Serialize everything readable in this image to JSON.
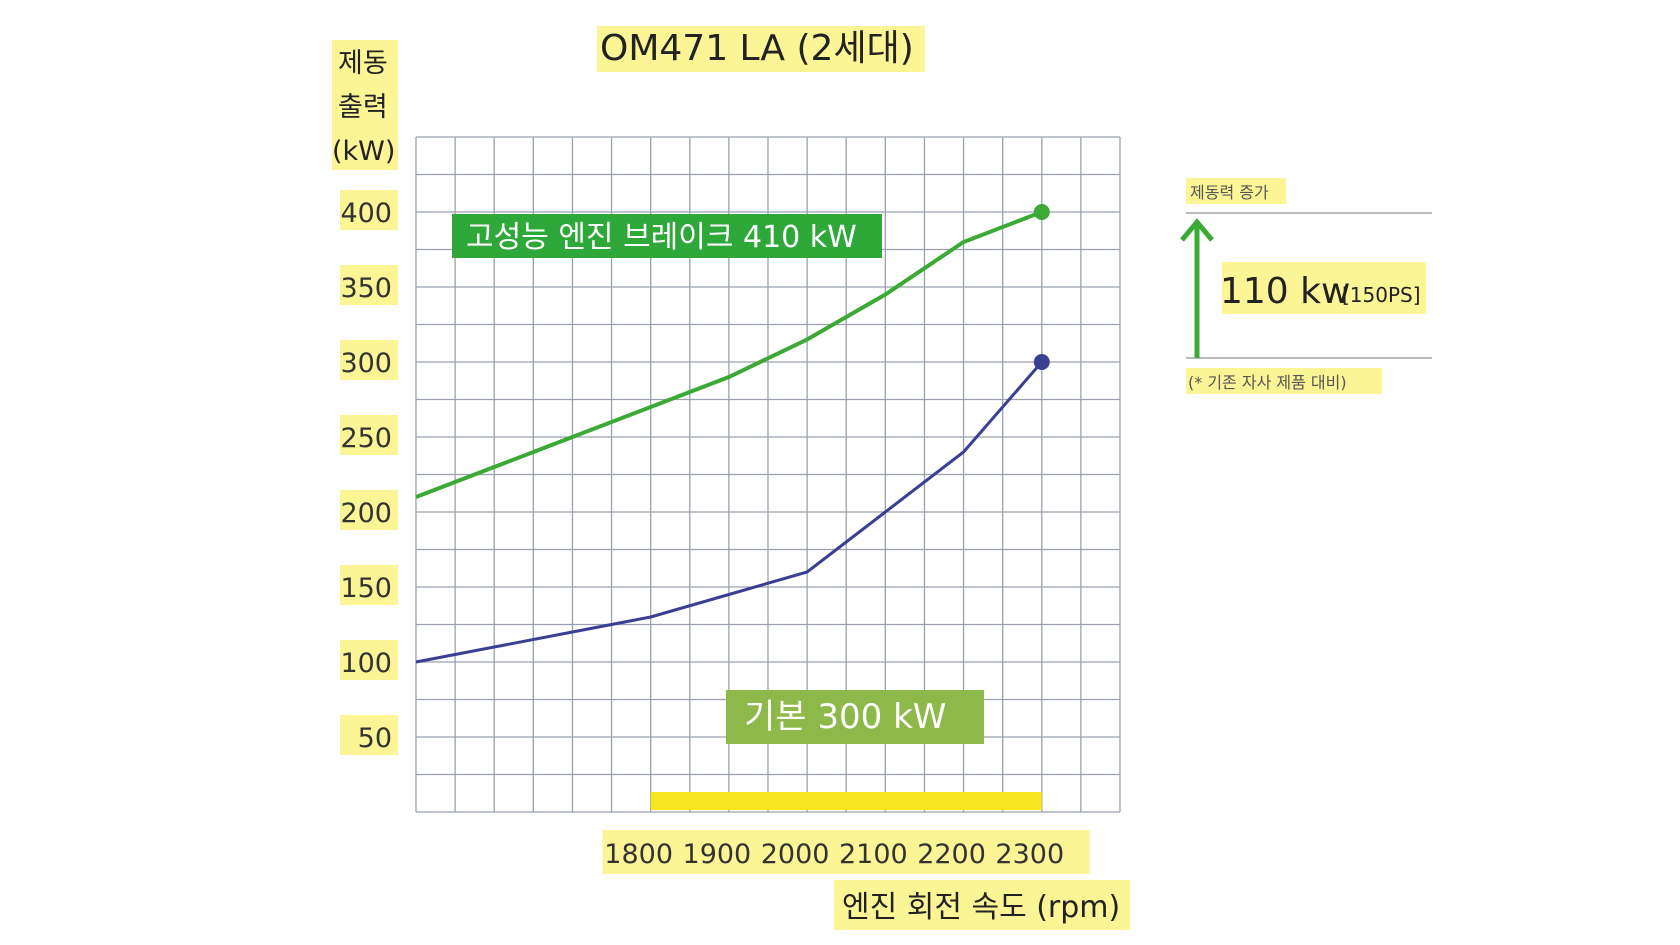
{
  "chart_data": {
    "type": "line",
    "title": "OM471 LA (2세대)",
    "ylabel_lines": [
      "제동",
      "출력",
      "(kW)"
    ],
    "xlabel": "엔진 회전 속도 (rpm)",
    "x_ticks": [
      "1800",
      "1900",
      "2000",
      "2100",
      "2200",
      "2300"
    ],
    "y_ticks": [
      "50",
      "100",
      "150",
      "200",
      "250",
      "300",
      "350",
      "400"
    ],
    "xlim": [
      1500,
      2400
    ],
    "ylim": [
      0,
      450
    ],
    "grid": true,
    "series": [
      {
        "label": "고성능 엔진 브레이크 410 kW",
        "color": "#3aaa35",
        "x": [
          1500,
          1600,
          1700,
          1800,
          1900,
          2000,
          2100,
          2200,
          2300
        ],
        "y": [
          210,
          230,
          250,
          270,
          290,
          315,
          345,
          380,
          400
        ]
      },
      {
        "label": "기본 300 kW",
        "color": "#3b3f94",
        "x": [
          1500,
          1600,
          1700,
          1800,
          1900,
          2000,
          2100,
          2200,
          2300
        ],
        "y": [
          100,
          110,
          120,
          130,
          145,
          160,
          200,
          240,
          300
        ]
      }
    ],
    "highlight_range": [
      1800,
      2300
    ],
    "highlight_color": "#f7e51f",
    "box_colors": [
      "#2fa83a",
      "#8db84a"
    ]
  },
  "annotation": {
    "top_label": "제동력 증가",
    "value_main": "110 kw",
    "value_sub": "[150PS]",
    "footnote": "(* 기존 자사 제품 대비)",
    "arrow_color": "#3aaa35"
  }
}
